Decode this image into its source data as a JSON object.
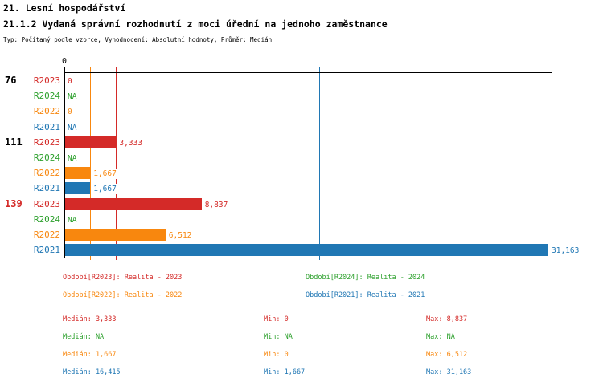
{
  "header": {
    "title": "21. Lesní hospodářství",
    "subtitle": "21.1.2 Vydaná správní rozhodnutí z moci úřední na jednoho zaměstnance",
    "meta": "Typ: Počítaný podle vzorce, Vyhodnocení: Absolutní hodnoty, Průměr: Medián"
  },
  "colors": {
    "R2023": "#d42a28",
    "R2024": "#2ca02c",
    "R2022": "#f8870e",
    "R2021": "#2077b4",
    "axis": "#000000",
    "group_label_default": "#000000",
    "group_label_highlight": "#d42a28"
  },
  "chart_data": {
    "type": "bar",
    "orientation": "horizontal",
    "title": "21.1.2 Vydaná správní rozhodnutí z moci úřední na jednoho zaměstnance",
    "xlabel": "",
    "ylabel": "",
    "xlim": [
      0,
      31420
    ],
    "x_ticks": [
      {
        "value": 0,
        "label": "0"
      }
    ],
    "series_order": [
      "R2023",
      "R2024",
      "R2022",
      "R2021"
    ],
    "median_lines": [
      {
        "series": "R2022",
        "value": 1667
      },
      {
        "series": "R2023",
        "value": 3333
      },
      {
        "series": "R2021",
        "value": 16415
      }
    ],
    "groups": [
      {
        "label": "76",
        "highlight": false,
        "rows": [
          {
            "series": "R2023",
            "value": 0,
            "display": "0"
          },
          {
            "series": "R2024",
            "value": null,
            "display": "NA"
          },
          {
            "series": "R2022",
            "value": 0,
            "display": "0"
          },
          {
            "series": "R2021",
            "value": null,
            "display": "NA"
          }
        ]
      },
      {
        "label": "111",
        "highlight": false,
        "rows": [
          {
            "series": "R2023",
            "value": 3333,
            "display": "3,333"
          },
          {
            "series": "R2024",
            "value": null,
            "display": "NA"
          },
          {
            "series": "R2022",
            "value": 1667,
            "display": "1,667"
          },
          {
            "series": "R2021",
            "value": 1667,
            "display": "1,667"
          }
        ]
      },
      {
        "label": "139",
        "highlight": true,
        "rows": [
          {
            "series": "R2023",
            "value": 8837,
            "display": "8,837"
          },
          {
            "series": "R2024",
            "value": null,
            "display": "NA"
          },
          {
            "series": "R2022",
            "value": 6512,
            "display": "6,512"
          },
          {
            "series": "R2021",
            "value": 31163,
            "display": "31,163"
          }
        ]
      }
    ]
  },
  "legend": {
    "items": [
      {
        "series": "R2023",
        "label": "Období[R2023]: Realita - 2023"
      },
      {
        "series": "R2024",
        "label": "Období[R2024]: Realita - 2024"
      },
      {
        "series": "R2022",
        "label": "Období[R2022]: Realita - 2022"
      },
      {
        "series": "R2021",
        "label": "Období[R2021]: Realita - 2021"
      }
    ]
  },
  "stats": {
    "rows": [
      {
        "series": "R2023",
        "median": "Medián: 3,333",
        "min": "Min: 0",
        "max": "Max: 8,837"
      },
      {
        "series": "R2024",
        "median": "Medián: NA",
        "min": "Min: NA",
        "max": "Max: NA"
      },
      {
        "series": "R2022",
        "median": "Medián: 1,667",
        "min": "Min: 0",
        "max": "Max: 6,512"
      },
      {
        "series": "R2021",
        "median": "Medián: 16,415",
        "min": "Min: 1,667",
        "max": "Max: 31,163"
      }
    ]
  }
}
